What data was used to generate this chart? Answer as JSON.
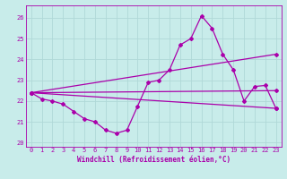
{
  "background_color": "#c8ecea",
  "grid_color": "#b0d8d8",
  "line_color": "#aa00aa",
  "xlim": [
    -0.5,
    23.5
  ],
  "ylim": [
    19.8,
    26.6
  ],
  "xlabel": "Windchill (Refroidissement éolien,°C)",
  "yticks": [
    20,
    21,
    22,
    23,
    24,
    25,
    26
  ],
  "xticks": [
    0,
    1,
    2,
    3,
    4,
    5,
    6,
    7,
    8,
    9,
    10,
    11,
    12,
    13,
    14,
    15,
    16,
    17,
    18,
    19,
    20,
    21,
    22,
    23
  ],
  "series_main": {
    "x": [
      0,
      1,
      2,
      3,
      4,
      5,
      6,
      7,
      8,
      9,
      10,
      11,
      12,
      13,
      14,
      15,
      16,
      17,
      18,
      19,
      20,
      21,
      22,
      23
    ],
    "y": [
      22.4,
      22.1,
      22.0,
      21.85,
      21.5,
      21.15,
      21.0,
      20.6,
      20.45,
      20.6,
      21.75,
      22.9,
      23.0,
      23.5,
      24.7,
      25.0,
      26.1,
      25.5,
      24.25,
      23.5,
      22.0,
      22.7,
      22.75,
      21.65
    ]
  },
  "series_lines": [
    {
      "x": [
        0,
        23
      ],
      "y": [
        22.4,
        21.65
      ]
    },
    {
      "x": [
        0,
        23
      ],
      "y": [
        22.4,
        24.25
      ]
    },
    {
      "x": [
        0,
        23
      ],
      "y": [
        22.4,
        21.65
      ]
    }
  ]
}
